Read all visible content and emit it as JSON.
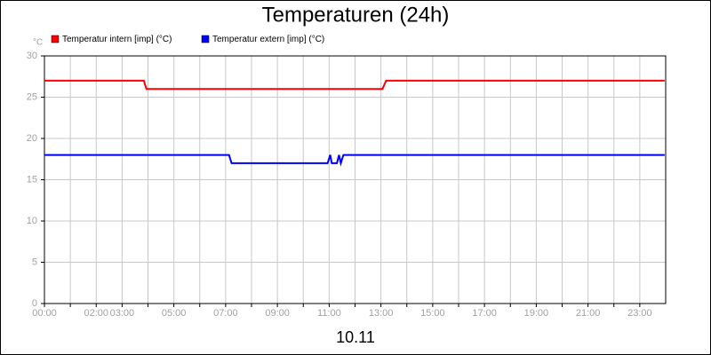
{
  "chart_data": {
    "type": "line",
    "title": "Temperaturen (24h)",
    "y_unit": "°C",
    "xlabel": "10.11",
    "xlim": [
      0,
      24
    ],
    "ylim": [
      0,
      30
    ],
    "xticks": [
      {
        "value": 0,
        "label": "00:00"
      },
      {
        "value": 2,
        "label": "02:00"
      },
      {
        "value": 3,
        "label": "03:00"
      },
      {
        "value": 5,
        "label": "05:00"
      },
      {
        "value": 7,
        "label": "07:00"
      },
      {
        "value": 9,
        "label": "09:00"
      },
      {
        "value": 11,
        "label": "11:00"
      },
      {
        "value": 13,
        "label": "13:00"
      },
      {
        "value": 15,
        "label": "15:00"
      },
      {
        "value": 17,
        "label": "17:00"
      },
      {
        "value": 19,
        "label": "19:00"
      },
      {
        "value": 21,
        "label": "21:00"
      },
      {
        "value": 23,
        "label": "23:00"
      }
    ],
    "xminor": [
      1,
      4,
      6,
      8,
      10,
      12,
      14,
      16,
      18,
      20,
      22
    ],
    "yticks": [
      0,
      5,
      10,
      15,
      20,
      25,
      30
    ],
    "grid": true,
    "series": [
      {
        "name": "Temperatur intern [imp] (°C)",
        "color": "#ff0000",
        "x": [
          0,
          3.84,
          3.94,
          13.06,
          13.2,
          23.96
        ],
        "values": [
          27,
          27,
          26,
          26,
          27,
          27
        ]
      },
      {
        "name": "Temperatur extern [imp] (°C)",
        "color": "#0000ff",
        "x": [
          0,
          7.13,
          7.23,
          10.94,
          11.04,
          11.1,
          11.3,
          11.38,
          11.45,
          11.55,
          23.96
        ],
        "values": [
          18,
          18,
          17,
          17,
          18,
          17,
          17,
          18,
          17,
          18,
          18
        ]
      }
    ]
  }
}
